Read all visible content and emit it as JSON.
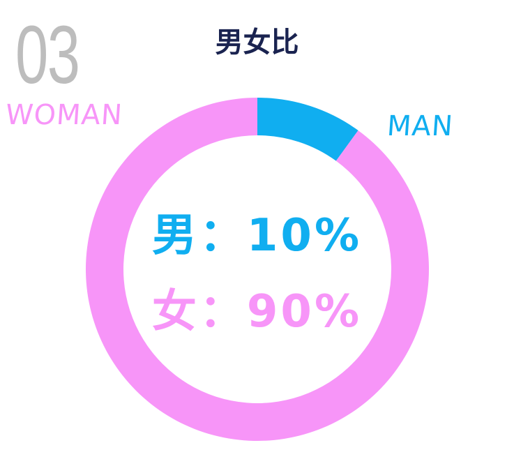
{
  "section_number": "03",
  "title": "男女比",
  "colors": {
    "male": "#10aef0",
    "female": "#f795f8",
    "title": "#1a2350",
    "section_number": "#bdbdbd"
  },
  "labels": {
    "woman": "WOMAN",
    "man": "MAN"
  },
  "center_text": {
    "male": "男：10%",
    "female": "女：90%"
  },
  "chart_data": {
    "type": "pie",
    "style": "donut",
    "title": "男女比",
    "categories": [
      "男",
      "女"
    ],
    "values": [
      10,
      90
    ],
    "unit": "%",
    "legend": [
      "MAN",
      "WOMAN"
    ]
  }
}
